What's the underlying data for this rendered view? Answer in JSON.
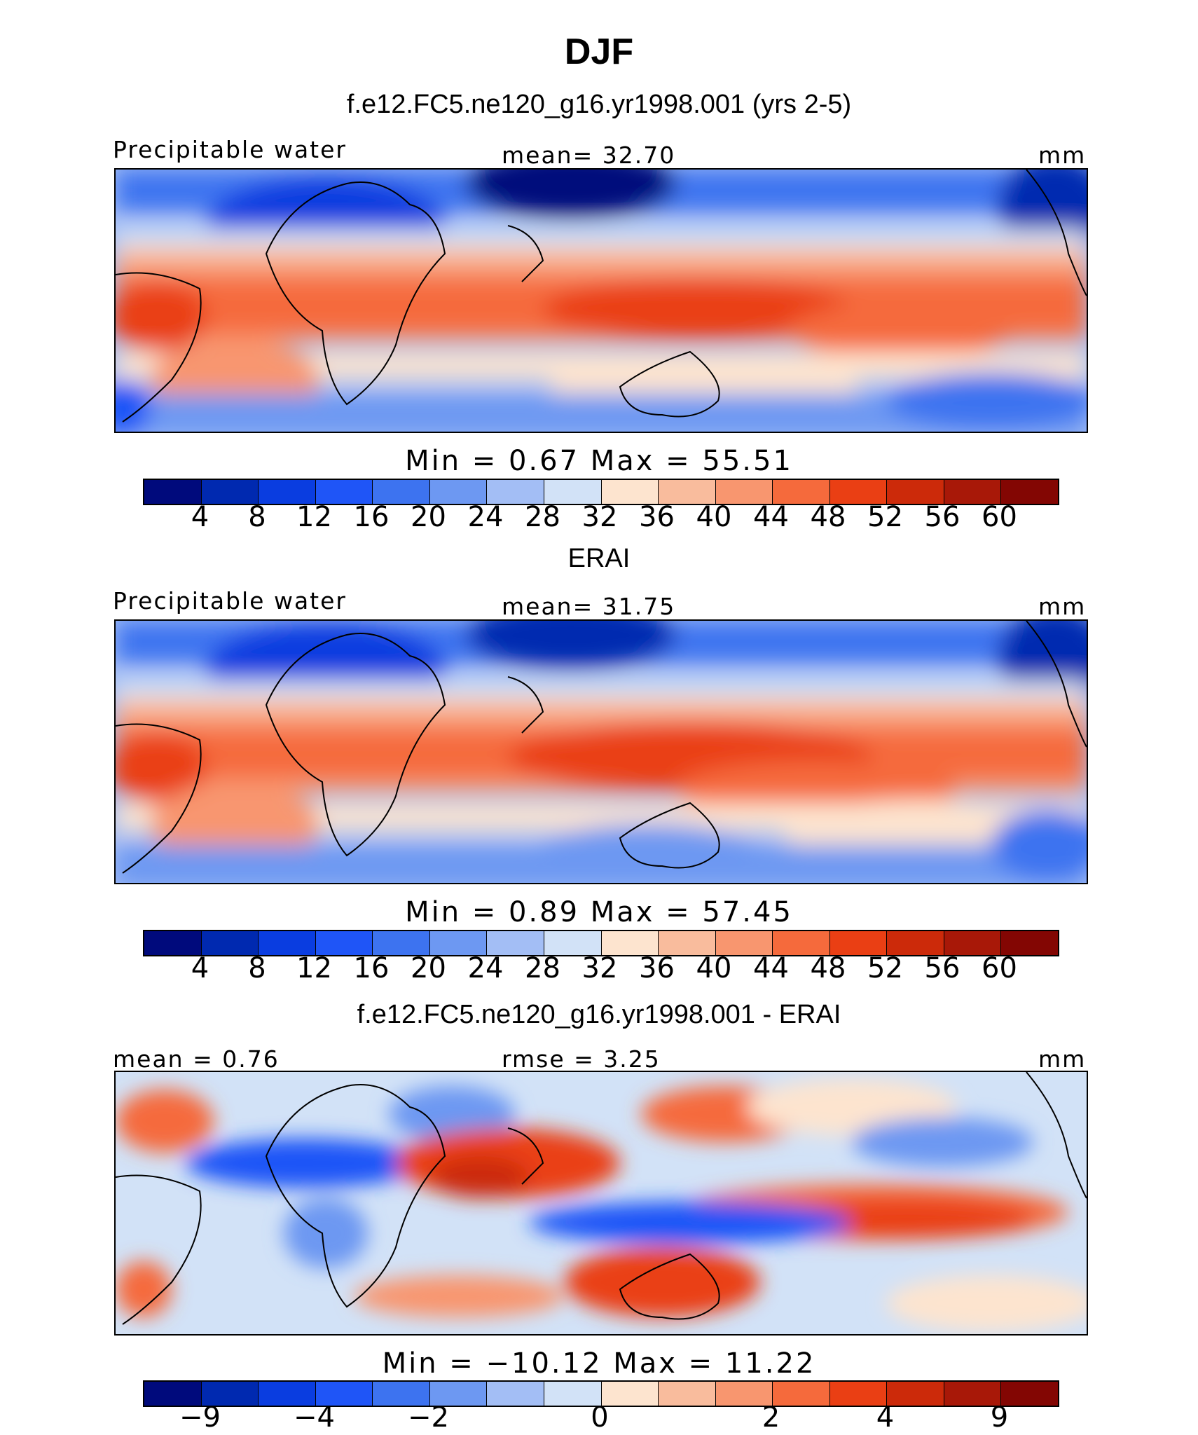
{
  "title": "DJF",
  "colors": {
    "precip_scale": [
      "#000a7c",
      "#0029b0",
      "#0a3de0",
      "#1f55f7",
      "#3d73f0",
      "#6d98f2",
      "#a3bef5",
      "#d2e2f7",
      "#fde4cf",
      "#f9bc9d",
      "#f8966f",
      "#f56a3c",
      "#ea3f14",
      "#cc2a0a",
      "#a81808",
      "#830603"
    ],
    "diff_scale": [
      "#000a7c",
      "#0029b0",
      "#0a3de0",
      "#1f55f7",
      "#3d73f0",
      "#6d98f2",
      "#a3bef5",
      "#d2e2f7",
      "#fde4cf",
      "#f9bc9d",
      "#f8966f",
      "#f56a3c",
      "#ea3f14",
      "#cc2a0a",
      "#a81808",
      "#830603"
    ]
  },
  "chart_data": [
    {
      "type": "heatmap",
      "subtitle": "f.e12.FC5.ne120_g16.yr1998.001 (yrs 2-5)",
      "left_label": "Precipitable water",
      "center_label": "mean=   32.70",
      "units": "mm",
      "min_max": "Min  =    0.67  Max  =   55.51",
      "colorbar_ticks": [
        "4",
        "8",
        "12",
        "16",
        "20",
        "24",
        "28",
        "32",
        "36",
        "40",
        "44",
        "48",
        "52",
        "56",
        "60"
      ]
    },
    {
      "type": "heatmap",
      "subtitle": "ERAI",
      "left_label": "Precipitable water",
      "center_label": "mean=   31.75",
      "units": "mm",
      "min_max": "Min  =    0.89  Max  =   57.45",
      "colorbar_ticks": [
        "4",
        "8",
        "12",
        "16",
        "20",
        "24",
        "28",
        "32",
        "36",
        "40",
        "44",
        "48",
        "52",
        "56",
        "60"
      ]
    },
    {
      "type": "heatmap",
      "subtitle": "f.e12.FC5.ne120_g16.yr1998.001 - ERAI",
      "left_label": "mean  =    0.76",
      "center_label": "rmse  =    3.25",
      "units": "mm",
      "min_max": "Min  = −10.12  Max  =   11.22",
      "colorbar_ticks": [
        "−9",
        "−4",
        "−2",
        "0",
        "2",
        "4",
        "9"
      ],
      "colorbar_tick_positions": [
        1,
        3,
        5,
        8,
        11,
        13,
        15
      ]
    }
  ]
}
